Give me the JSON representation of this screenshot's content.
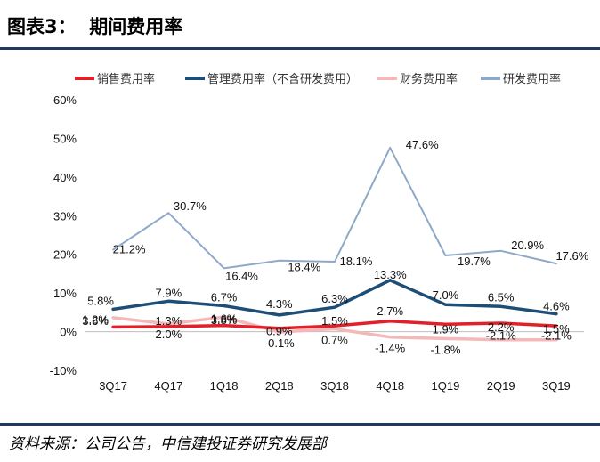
{
  "figure": {
    "title": "图表3：  期间费用率",
    "source": "资料来源：公司公告，中信建投证券研究发展部"
  },
  "chart_data": {
    "type": "line",
    "categories": [
      "3Q17",
      "4Q17",
      "1Q18",
      "2Q18",
      "3Q18",
      "4Q18",
      "1Q19",
      "2Q19",
      "3Q19"
    ],
    "y_ticks": [
      "60%",
      "50%",
      "40%",
      "30%",
      "20%",
      "10%",
      "0%",
      "-10%"
    ],
    "ylim": [
      -10,
      60
    ],
    "legend_position": "top",
    "grid": false,
    "series": [
      {
        "name": "销售费用率",
        "color": "#e0202a",
        "values": [
          1.2,
          1.3,
          1.6,
          0.9,
          1.5,
          2.7,
          1.9,
          2.2,
          1.5
        ],
        "labels": [
          "1.2%",
          "1.3%",
          "1.6%",
          "0.9%",
          "1.5%",
          "2.7%",
          "1.9%",
          "2.2%",
          "1.5%"
        ]
      },
      {
        "name": "管理费用率（不含研发费用）",
        "color": "#1d4e78",
        "values": [
          5.8,
          7.9,
          6.7,
          4.3,
          6.3,
          13.3,
          7.0,
          6.5,
          4.6
        ],
        "labels": [
          "5.8%",
          "7.9%",
          "6.7%",
          "4.3%",
          "6.3%",
          "13.3%",
          "7.0%",
          "6.5%",
          "4.6%"
        ]
      },
      {
        "name": "财务费用率",
        "color": "#f4b8b8",
        "values": [
          3.6,
          2.0,
          3.8,
          -0.1,
          0.7,
          -1.4,
          -1.8,
          -2.1,
          -2.1
        ],
        "labels": [
          "3.6%",
          "2.0%",
          "3.8%",
          "-0.1%",
          "0.7%",
          "-1.4%",
          "-1.8%",
          "-2.1%",
          "-2.1%"
        ]
      },
      {
        "name": "研发费用率",
        "color": "#8ea9c8",
        "values": [
          21.2,
          30.7,
          16.4,
          18.4,
          18.1,
          47.6,
          19.7,
          20.9,
          17.6
        ],
        "labels": [
          "21.2%",
          "30.7%",
          "16.4%",
          "18.4%",
          "18.1%",
          "47.6%",
          "19.7%",
          "20.9%",
          "17.6%"
        ]
      }
    ]
  }
}
